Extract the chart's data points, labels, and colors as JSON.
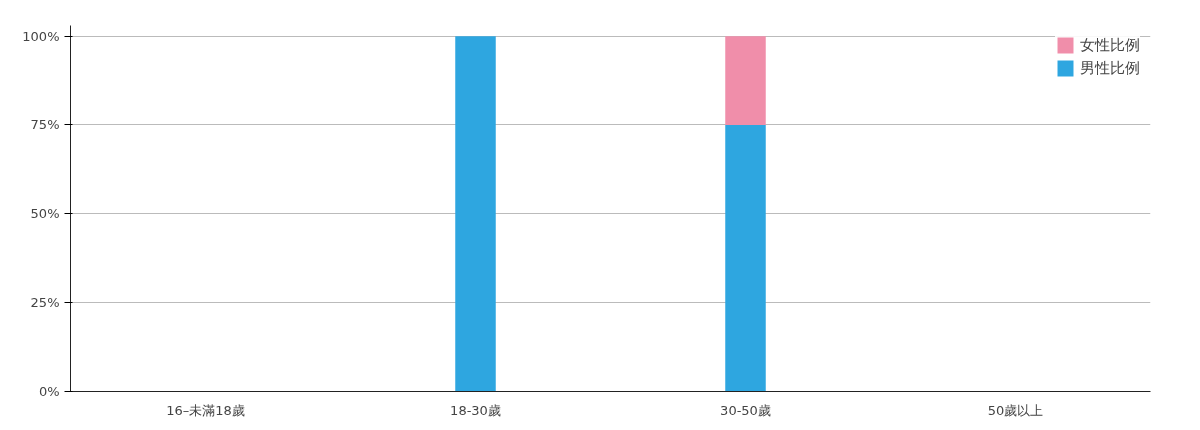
{
  "chart_data": {
    "type": "bar",
    "stacked": true,
    "categories": [
      "16–未滿18歲",
      "18-30歲",
      "30-50歲",
      "50歲以上"
    ],
    "series": [
      {
        "name": "男性比例",
        "color": "#2ea6e0",
        "values": [
          0,
          100,
          75,
          0
        ]
      },
      {
        "name": "女性比例",
        "color": "#f08eaa",
        "values": [
          0,
          0,
          25,
          0
        ]
      }
    ],
    "ylim": [
      0,
      100
    ],
    "yticks": [
      {
        "value": 0,
        "label": "0%"
      },
      {
        "value": 25,
        "label": "25%"
      },
      {
        "value": 50,
        "label": "50%"
      },
      {
        "value": 75,
        "label": "75%"
      },
      {
        "value": 100,
        "label": "100%"
      }
    ],
    "grid": "y",
    "legend": "top right"
  }
}
